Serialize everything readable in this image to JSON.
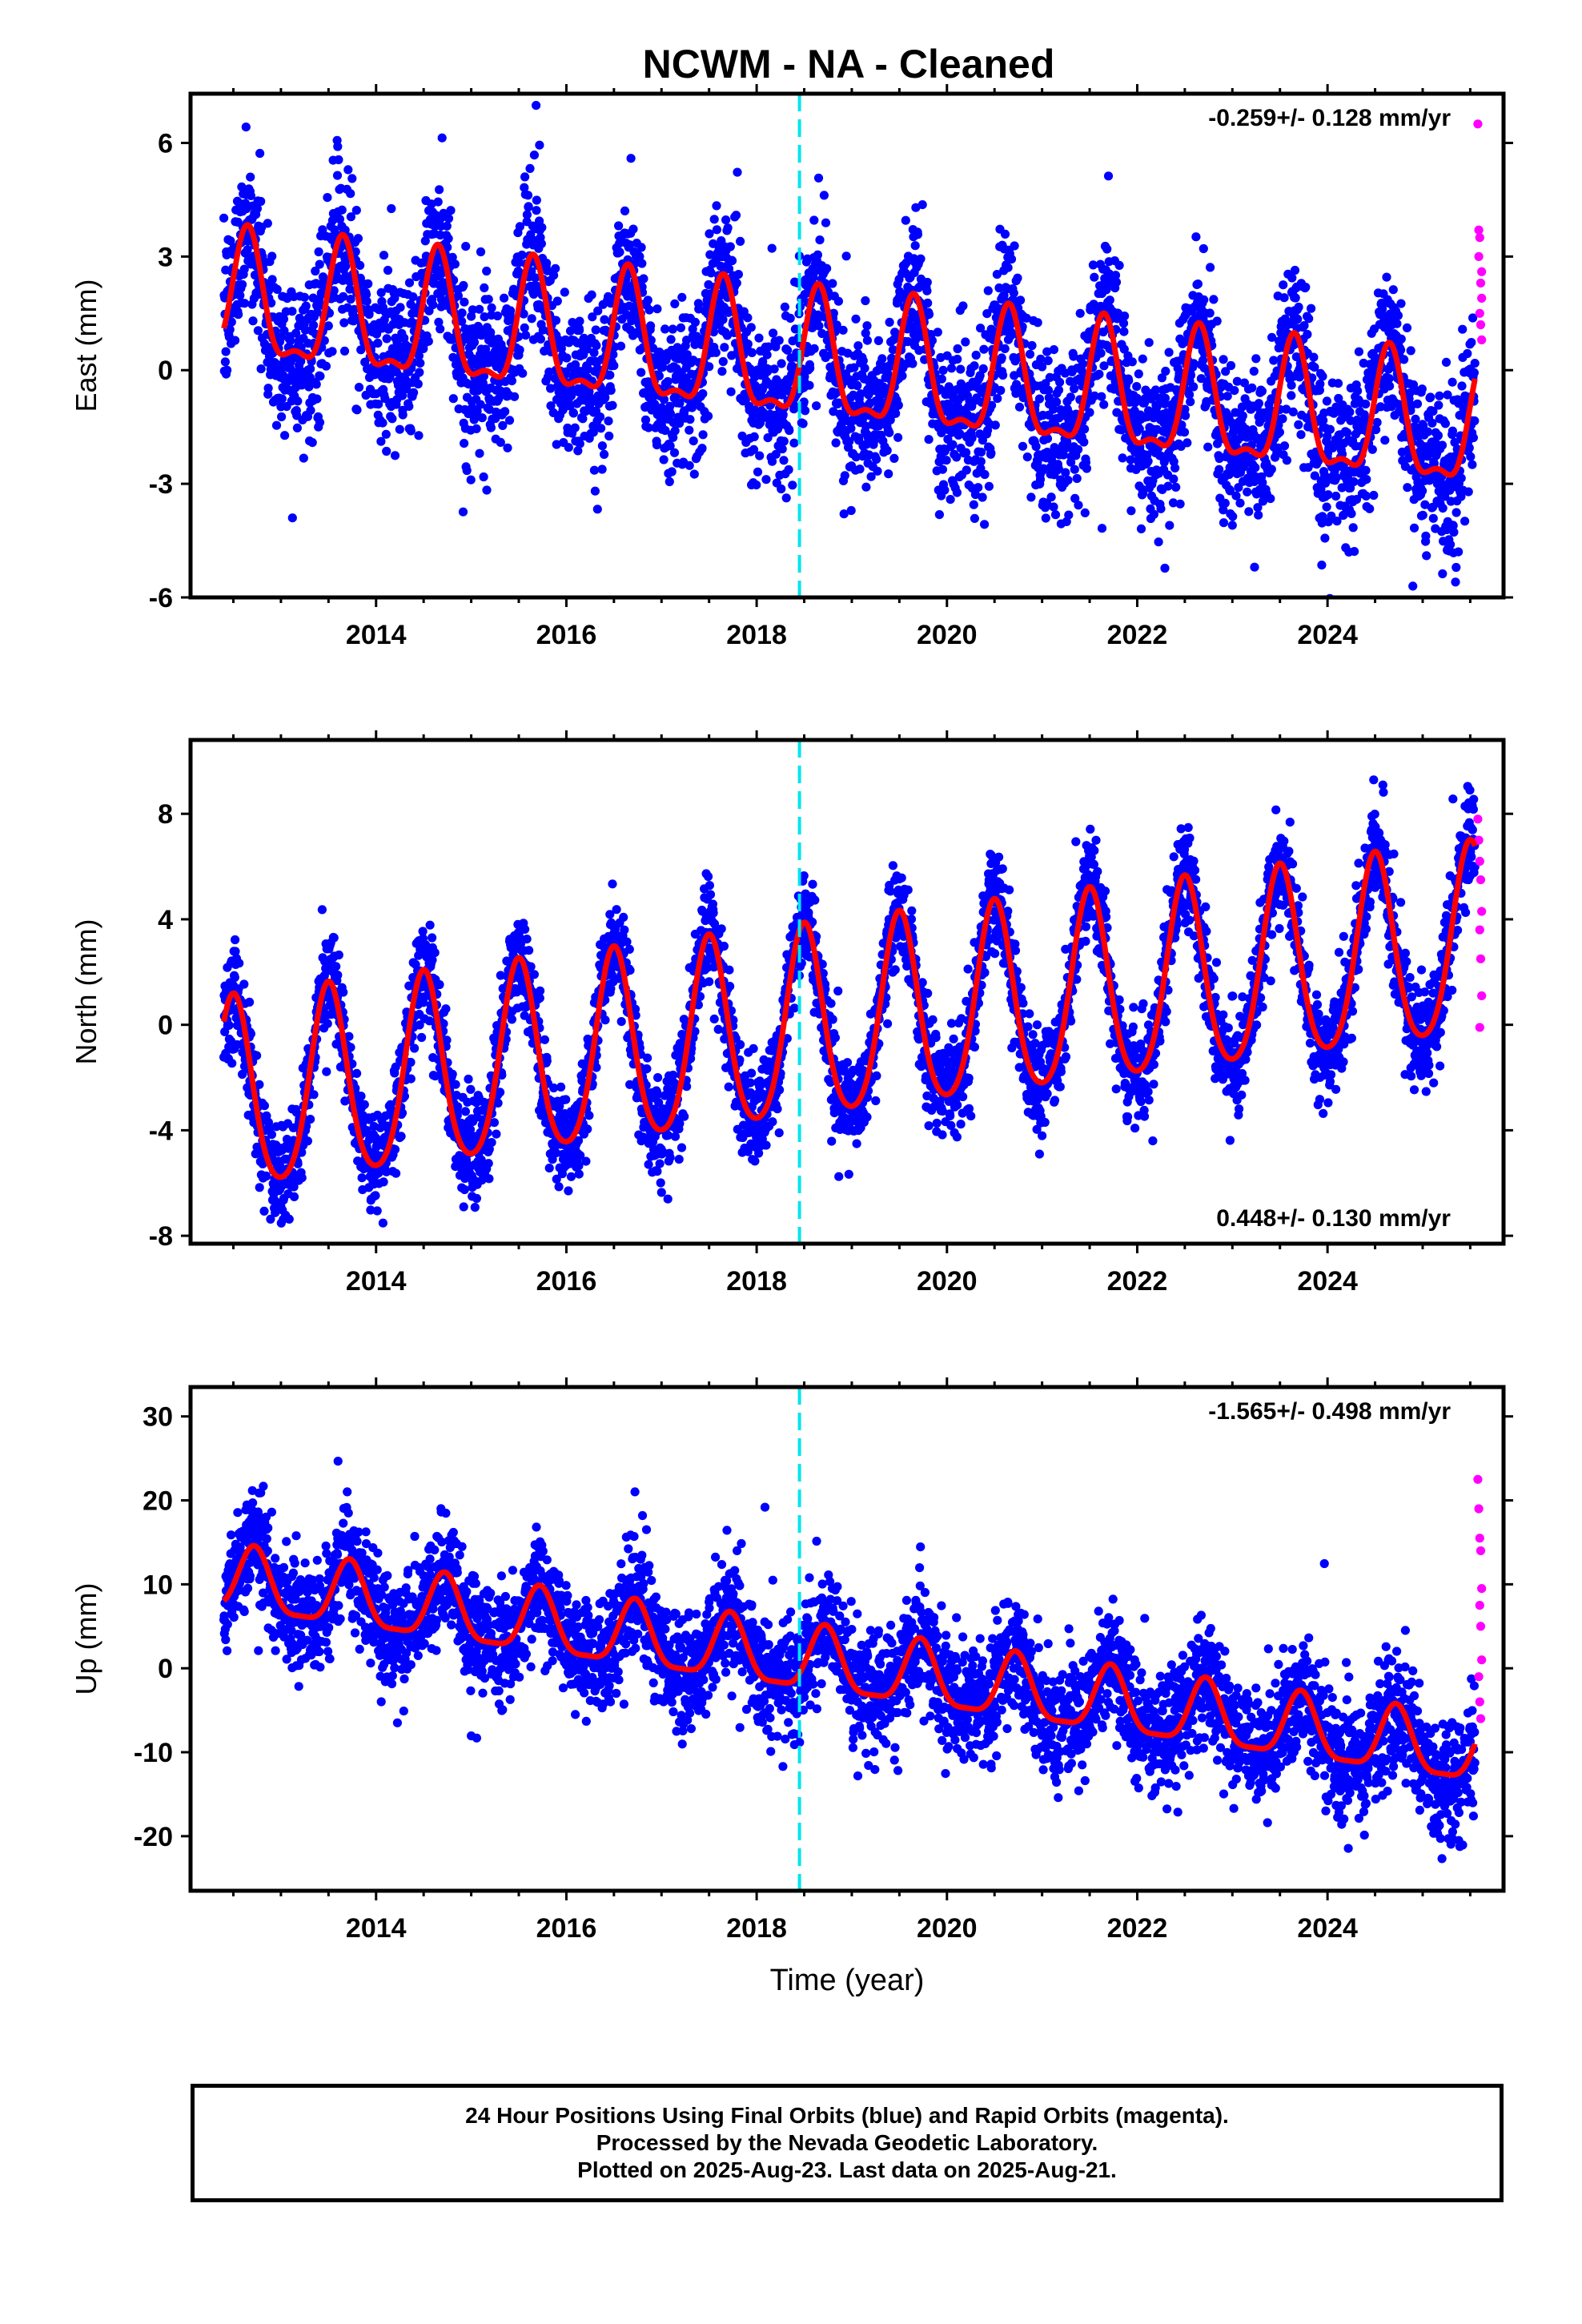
{
  "title": "NCWM  - NA - Cleaned",
  "colors": {
    "final_orbits": "#0000ff",
    "rapid_orbits": "#ff00ff",
    "model_fit": "#ff0000",
    "equipment_change": "#00e5ee",
    "axis": "#000000"
  },
  "footer": {
    "line1": "24 Hour Positions Using Final Orbits (blue) and Rapid Orbits (magenta).",
    "line2": "Processed by the Nevada Geodetic Laboratory.",
    "line3": "Plotted on 2025-Aug-23. Last data on 2025-Aug-21."
  },
  "chart_data": [
    {
      "type": "scatter",
      "component": "East",
      "ylabel": "East (mm)",
      "xlabel": "",
      "xlim": [
        2012.05,
        2025.85
      ],
      "ylim": [
        -6,
        7.3
      ],
      "yticks": [
        -6,
        -3,
        0,
        3,
        6
      ],
      "xticks": [
        2014,
        2016,
        2018,
        2020,
        2022,
        2024
      ],
      "rate_label": "-0.259+/- 0.128 mm/yr",
      "rate_position": "top-right",
      "grid": false,
      "equipment_change_x": 2018.45,
      "model": {
        "offset": 0.0,
        "trend": -0.259,
        "annual_amp": 1.6,
        "annual_peak": 0.65,
        "semiannual_amp": 0.6,
        "noise_sd": 1.05
      },
      "final_orbits_range": [
        2012.4,
        2025.55
      ],
      "rapid_orbits": [
        {
          "x": 2025.58,
          "y": 6.5
        },
        {
          "x": 2025.59,
          "y": 3.7
        },
        {
          "x": 2025.6,
          "y": 3.5
        },
        {
          "x": 2025.61,
          "y": 2.3
        },
        {
          "x": 2025.62,
          "y": 1.9
        },
        {
          "x": 2025.6,
          "y": 1.5
        },
        {
          "x": 2025.61,
          "y": 1.2
        },
        {
          "x": 2025.62,
          "y": 0.8
        },
        {
          "x": 2025.59,
          "y": 3.0
        },
        {
          "x": 2025.62,
          "y": 2.6
        }
      ]
    },
    {
      "type": "scatter",
      "component": "North",
      "ylabel": "North (mm)",
      "xlabel": "",
      "xlim": [
        2012.05,
        2025.85
      ],
      "ylim": [
        -8.3,
        10.8
      ],
      "yticks": [
        -8,
        -4,
        0,
        4,
        8
      ],
      "xticks": [
        2014,
        2016,
        2018,
        2020,
        2022,
        2024
      ],
      "rate_label": "0.448+/- 0.130 mm/yr",
      "rate_position": "bottom-right",
      "grid": false,
      "equipment_change_x": 2018.45,
      "model": {
        "offset": 0.0,
        "trend": 0.448,
        "annual_amp": 3.6,
        "annual_peak": 0.5,
        "semiannual_amp": 0.5,
        "noise_sd": 0.95
      },
      "final_orbits_range": [
        2012.4,
        2025.55
      ],
      "rapid_orbits": [
        {
          "x": 2025.58,
          "y": 7.8
        },
        {
          "x": 2025.59,
          "y": 7.0
        },
        {
          "x": 2025.6,
          "y": 6.2
        },
        {
          "x": 2025.61,
          "y": 5.5
        },
        {
          "x": 2025.62,
          "y": 4.3
        },
        {
          "x": 2025.6,
          "y": 3.6
        },
        {
          "x": 2025.61,
          "y": 2.5
        },
        {
          "x": 2025.62,
          "y": 1.1
        },
        {
          "x": 2025.6,
          "y": -0.1
        }
      ]
    },
    {
      "type": "scatter",
      "component": "Up",
      "ylabel": "Up (mm)",
      "xlabel": "Time (year)",
      "xlim": [
        2012.05,
        2025.85
      ],
      "ylim": [
        -26.5,
        33.5
      ],
      "yticks": [
        -20,
        -10,
        0,
        10,
        20,
        30
      ],
      "xticks": [
        2014,
        2016,
        2018,
        2020,
        2022,
        2024
      ],
      "rate_label": "-1.565+/- 0.498 mm/yr",
      "rate_position": "top-right",
      "grid": false,
      "equipment_change_x": 2018.45,
      "model": {
        "offset": 0.0,
        "trend": -1.565,
        "annual_amp": 3.8,
        "annual_peak": 0.72,
        "semiannual_amp": 1.0,
        "noise_sd": 3.4
      },
      "final_orbits_range": [
        2012.4,
        2025.55
      ],
      "rapid_orbits": [
        {
          "x": 2025.58,
          "y": 22.5
        },
        {
          "x": 2025.59,
          "y": 19.0
        },
        {
          "x": 2025.6,
          "y": 15.5
        },
        {
          "x": 2025.61,
          "y": 14.0
        },
        {
          "x": 2025.62,
          "y": 9.5
        },
        {
          "x": 2025.6,
          "y": 7.5
        },
        {
          "x": 2025.61,
          "y": 5.0
        },
        {
          "x": 2025.62,
          "y": 1.0
        },
        {
          "x": 2025.59,
          "y": -1.0
        },
        {
          "x": 2025.6,
          "y": -4.0
        },
        {
          "x": 2025.61,
          "y": -6.0
        }
      ]
    }
  ]
}
